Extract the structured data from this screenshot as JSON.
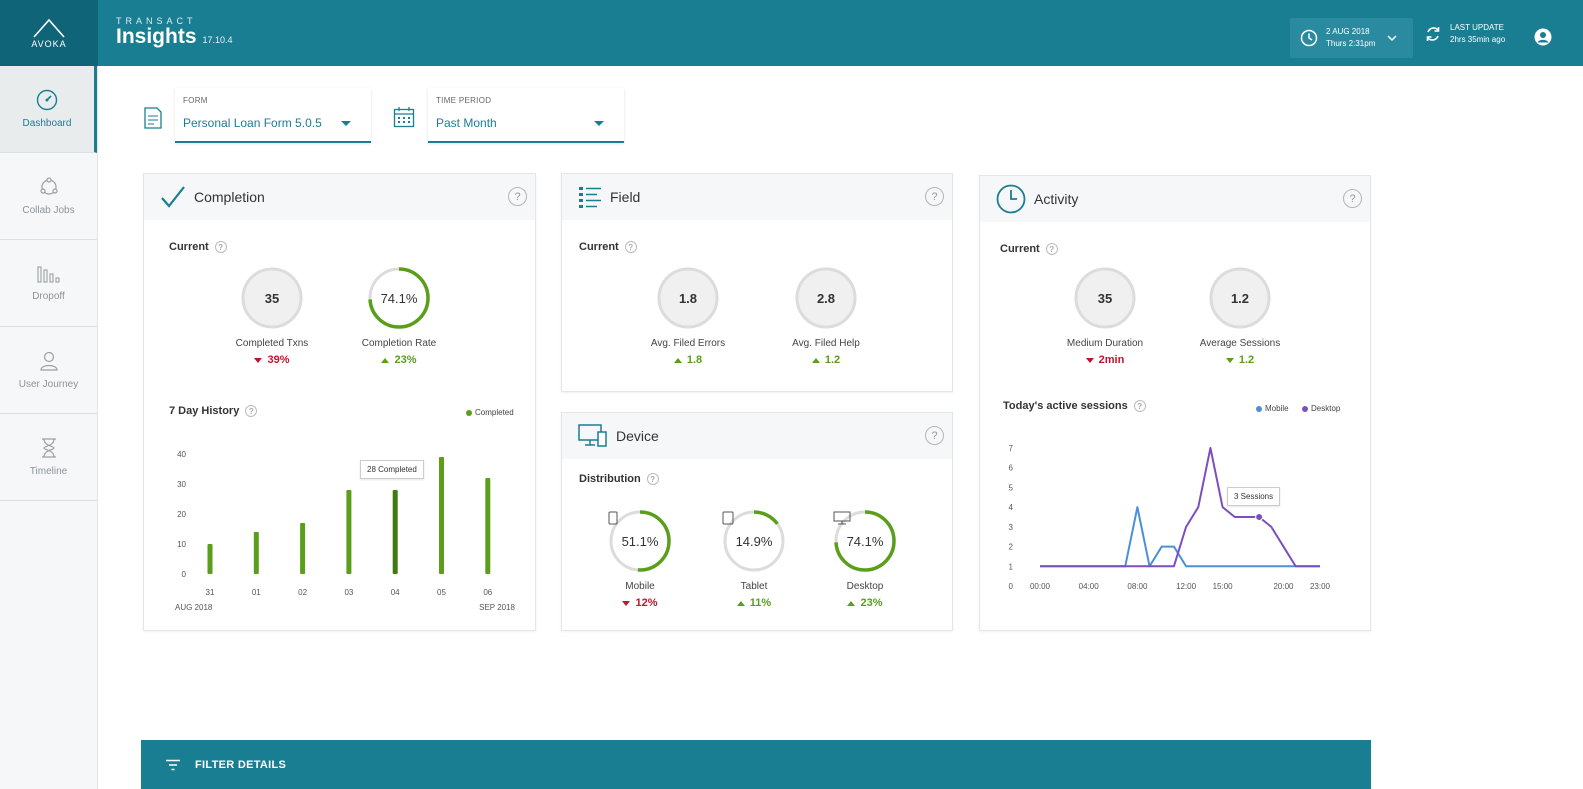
{
  "header": {
    "logo_text": "AVOKA",
    "brand_super": "TRANSACT",
    "brand_name": "Insights",
    "version": "17.10.4",
    "date_line1": "2 AUG 2018",
    "date_line2": "Thurs 2:31pm",
    "update_line1": "LAST UPDATE",
    "update_line2": "2hrs 35min ago"
  },
  "sidebar": {
    "items": [
      {
        "label": "Dashboard",
        "icon": "speedometer-icon"
      },
      {
        "label": "Collab Jobs",
        "icon": "collab-icon"
      },
      {
        "label": "Dropoff",
        "icon": "bars-icon"
      },
      {
        "label": "User Journey",
        "icon": "user-icon"
      },
      {
        "label": "Timeline",
        "icon": "hourglass-icon"
      }
    ]
  },
  "filters": {
    "form_label": "FORM",
    "form_value": "Personal Loan Form 5.0.5",
    "period_label": "TIME PERIOD",
    "period_value": "Past Month"
  },
  "completion": {
    "title": "Completion",
    "current_label": "Current",
    "metrics": [
      {
        "value": "35",
        "label": "Completed Txns",
        "delta": "39%",
        "direction": "down"
      },
      {
        "value": "74.1%",
        "label": "Completion Rate",
        "delta": "23%",
        "direction": "up",
        "progress": 0.741
      }
    ],
    "history_label": "7 Day History",
    "legend": "Completed",
    "tooltip": "28 Completed",
    "start_label": "AUG 2018",
    "end_label": "SEP 2018"
  },
  "field": {
    "title": "Field",
    "current_label": "Current",
    "metrics": [
      {
        "value": "1.8",
        "label": "Avg. Filed Errors",
        "delta": "1.8",
        "direction": "up"
      },
      {
        "value": "2.8",
        "label": "Avg. Filed Help",
        "delta": "1.2",
        "direction": "up"
      }
    ]
  },
  "device": {
    "title": "Device",
    "dist_label": "Distribution",
    "metrics": [
      {
        "value": "51.1%",
        "label": "Mobile",
        "delta": "12%",
        "direction": "down",
        "progress": 0.511,
        "icon": "mobile-icon"
      },
      {
        "value": "14.9%",
        "label": "Tablet",
        "delta": "11%",
        "direction": "up",
        "progress": 0.149,
        "icon": "tablet-icon"
      },
      {
        "value": "74.1%",
        "label": "Desktop",
        "delta": "23%",
        "direction": "up",
        "progress": 0.741,
        "icon": "desktop-icon"
      }
    ]
  },
  "activity": {
    "title": "Activity",
    "current_label": "Current",
    "metrics": [
      {
        "value": "35",
        "label": "Medium Duration",
        "delta": "2min",
        "direction": "down"
      },
      {
        "value": "1.2",
        "label": "Average Sessions",
        "delta": "1.2",
        "direction": "up"
      }
    ],
    "sessions_label": "Today's active sessions",
    "tooltip": "3 Sessions"
  },
  "filter_bar": {
    "label": "FILTER DETAILS"
  },
  "colors": {
    "teal": "#1a7e93",
    "green": "#5a9e1b",
    "red": "#c0142c",
    "mobile": "#4a90d9",
    "desktop": "#7b4fbf"
  },
  "chart_data": [
    {
      "type": "bar",
      "categories": [
        "31",
        "01",
        "02",
        "03",
        "04",
        "05",
        "06"
      ],
      "series": [
        {
          "name": "Completed",
          "values": [
            10,
            14,
            17,
            28,
            28,
            39,
            32
          ]
        }
      ],
      "ylim": [
        0,
        40
      ],
      "yticks": [
        0,
        10,
        20,
        30,
        40
      ],
      "highlight_index": 4
    },
    {
      "type": "line",
      "x": [
        "00:00",
        "01:00",
        "02:00",
        "03:00",
        "04:00",
        "05:00",
        "06:00",
        "07:00",
        "08:00",
        "09:00",
        "10:00",
        "11:00",
        "12:00",
        "13:00",
        "14:00",
        "15:00",
        "16:00",
        "17:00",
        "18:00",
        "19:00",
        "20:00",
        "21:00",
        "22:00",
        "23:00"
      ],
      "xticks": [
        "00:00",
        "04:00",
        "08:00",
        "12:00",
        "15:00",
        "20:00",
        "23:00"
      ],
      "series": [
        {
          "name": "Mobile",
          "values": [
            1,
            1,
            1,
            1,
            1,
            1,
            1,
            1,
            4,
            1,
            2,
            2,
            1,
            1,
            1,
            1,
            1,
            1,
            1,
            1,
            1,
            1,
            1,
            1
          ]
        },
        {
          "name": "Desktop",
          "values": [
            1,
            1,
            1,
            1,
            1,
            1,
            1,
            1,
            1,
            1,
            1,
            1,
            3,
            4,
            7,
            4,
            3.5,
            3.5,
            3.5,
            3,
            2,
            1,
            1,
            1
          ]
        }
      ],
      "ylim": [
        0,
        7
      ],
      "yticks": [
        0,
        1,
        2,
        3,
        4,
        5,
        6,
        7
      ]
    }
  ]
}
